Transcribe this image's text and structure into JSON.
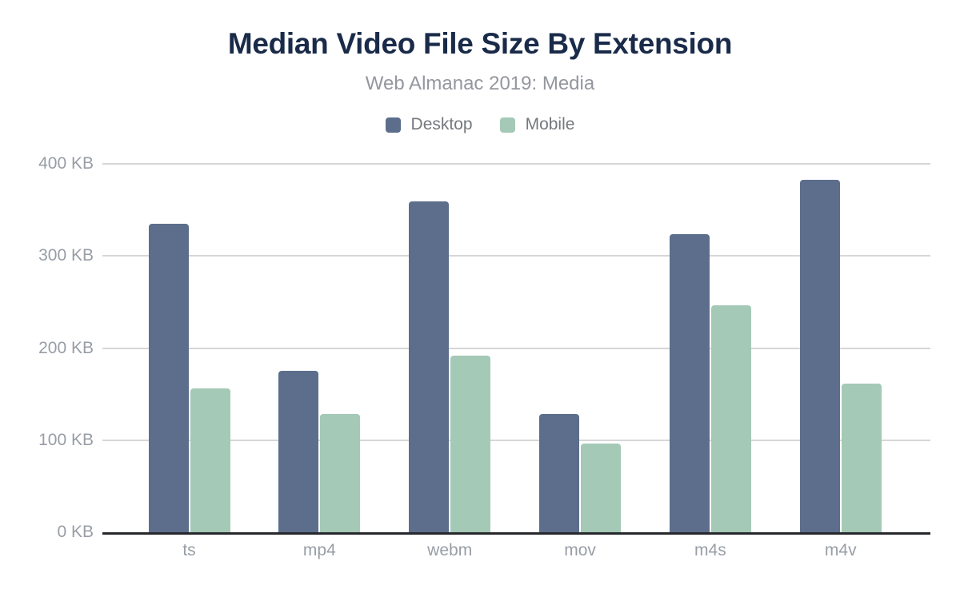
{
  "chart_data": {
    "type": "bar",
    "title": "Median Video File Size By Extension",
    "subtitle": "Web Almanac 2019: Media",
    "categories": [
      "ts",
      "mp4",
      "webm",
      "mov",
      "m4s",
      "m4v"
    ],
    "series": [
      {
        "name": "Desktop",
        "color": "#5c6e8c",
        "values": [
          335,
          175,
          359,
          128,
          324,
          383
        ]
      },
      {
        "name": "Mobile",
        "color": "#a5c9b7",
        "values": [
          156,
          128,
          192,
          96,
          246,
          161
        ]
      }
    ],
    "unit": "KB",
    "xlabel": "",
    "ylabel": "",
    "ylim": [
      0,
      400
    ],
    "yticks": [
      {
        "value": 0,
        "label": "0 KB"
      },
      {
        "value": 100,
        "label": "100 KB"
      },
      {
        "value": 200,
        "label": "200 KB"
      },
      {
        "value": 300,
        "label": "300 KB"
      },
      {
        "value": 400,
        "label": "400 KB"
      }
    ],
    "grid": "horizontal",
    "legend_position": "top"
  },
  "palette": {
    "background": "#ffffff",
    "title": "#1a2b49",
    "subtitle": "#94979e",
    "legend_text": "#75787d",
    "axis_label": "#989da6",
    "gridline": "#d6d6d6",
    "axis_line": "#26282c"
  }
}
